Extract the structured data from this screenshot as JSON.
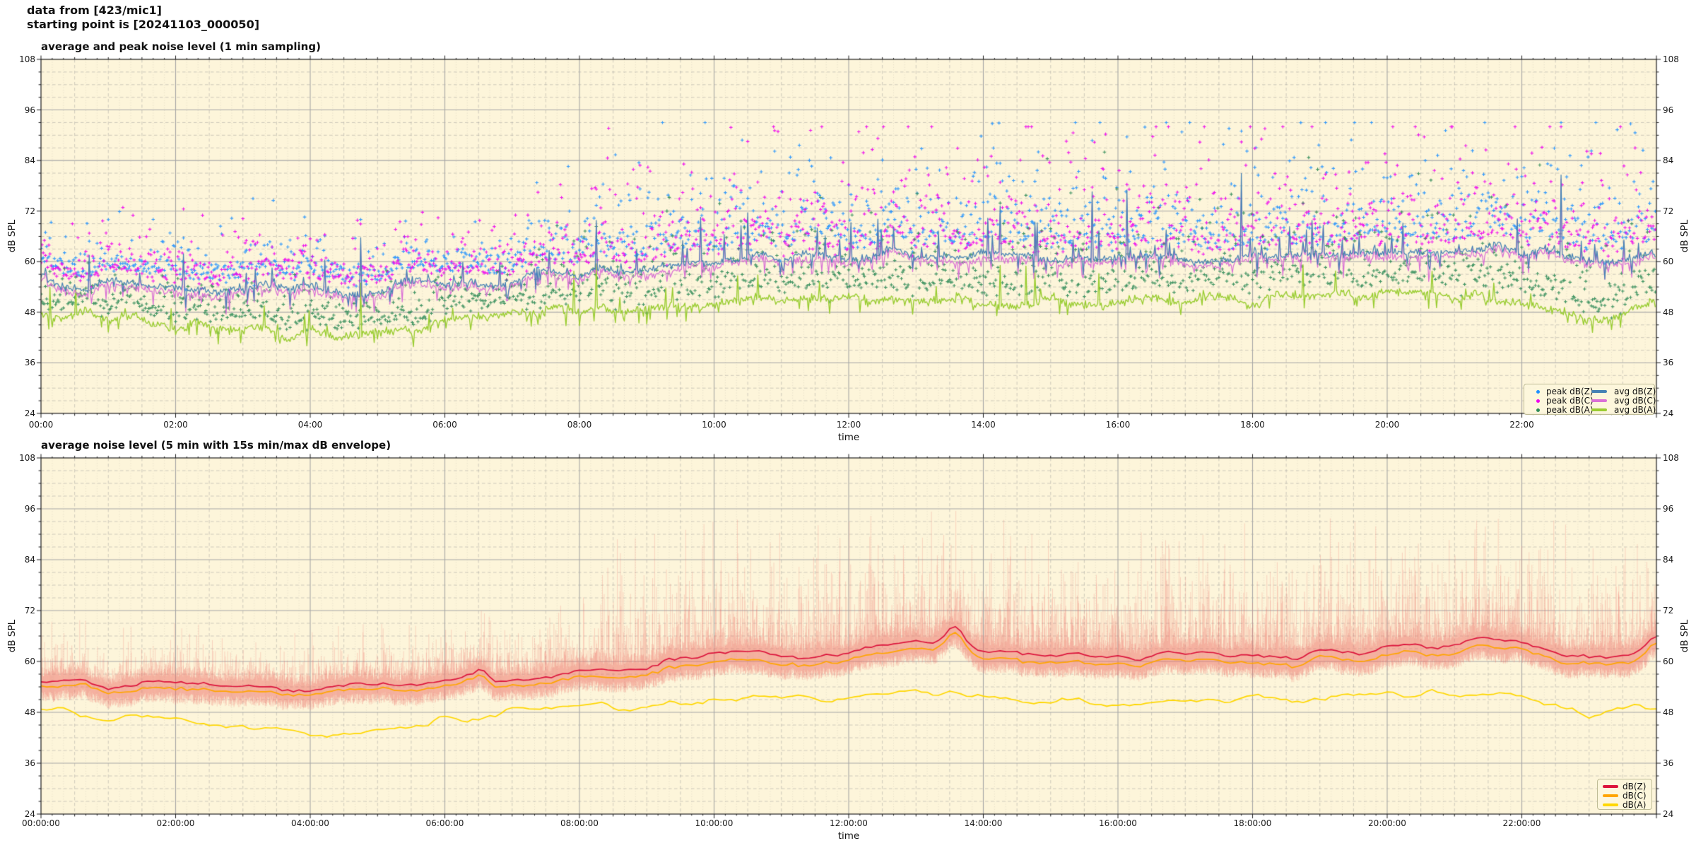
{
  "header": {
    "line1": "data from [423/mic1]",
    "line2": "starting point is [20241103_000050]"
  },
  "chart_data": [
    {
      "type": "line",
      "title": "average and peak noise level (1 min sampling)",
      "xlabel": "time",
      "ylabel_left": "dB SPL",
      "ylabel_right": "dB SPL",
      "ylim": [
        24,
        108
      ],
      "xlim_hours": [
        0,
        24
      ],
      "x_ticks": [
        "00:00",
        "02:00",
        "04:00",
        "06:00",
        "08:00",
        "10:00",
        "12:00",
        "14:00",
        "16:00",
        "18:00",
        "20:00",
        "22:00"
      ],
      "y_ticks": [
        108,
        96,
        84,
        72,
        60,
        48,
        36,
        24
      ],
      "grid": {
        "x_major_hours": 2,
        "x_minor_minutes": [
          10,
          30
        ],
        "y_major_db": 12,
        "y_minor_db": 3
      },
      "legend_position": "lower right",
      "plot_bg": "#FDF5DA",
      "sampling_minutes": 1,
      "anchor_hours": [
        0,
        1,
        2,
        3,
        4,
        5,
        6,
        7,
        8,
        9,
        10,
        11,
        12,
        13,
        14,
        15,
        16,
        17,
        18,
        19,
        20,
        21,
        22,
        23,
        24
      ],
      "series": [
        {
          "name": "peak dB(Z)",
          "kind": "scatter",
          "color": "#1E90FF",
          "derived_from": "avg dB(Z)",
          "offset_base_db": 3.0,
          "exp_scale_night": 3.0,
          "exp_scale_day": 6.4,
          "max_db": 93
        },
        {
          "name": "peak dB(C)",
          "kind": "scatter",
          "color": "#EE00EE",
          "derived_from": "avg dB(C)",
          "offset_base_db": 3.2,
          "exp_scale_night": 3.2,
          "exp_scale_day": 6.8,
          "max_db": 92
        },
        {
          "name": "peak dB(A)",
          "kind": "scatter",
          "color": "#2E8B57",
          "derived_from": "avg dB(A)",
          "offset_base_db": 2.5,
          "exp_scale_night": 2.4,
          "exp_scale_day": 5.0,
          "max_db": 86
        },
        {
          "name": "avg dB(Z)",
          "kind": "line",
          "color": "#4682B4",
          "anchors_db": [
            55.5,
            54.5,
            54,
            53.5,
            53,
            53.5,
            55,
            56,
            57,
            58.5,
            61,
            62,
            61.5,
            62.5,
            61.5,
            60.5,
            60.5,
            61,
            61,
            61.5,
            63,
            63.5,
            63,
            60.5,
            63
          ]
        },
        {
          "name": "avg dB(C)",
          "kind": "line",
          "color": "#DA70D6",
          "derived_from": "avg dB(Z)",
          "offset_db": -1.0
        },
        {
          "name": "avg dB(A)",
          "kind": "line",
          "color": "#9ACD32",
          "anchors_db": [
            48,
            46.5,
            45,
            43.5,
            42.5,
            43,
            45.5,
            47.5,
            48.5,
            49,
            50.5,
            51.5,
            51,
            52,
            51,
            50.5,
            50.5,
            51,
            51,
            51.5,
            52,
            52.5,
            50,
            46,
            49
          ]
        }
      ]
    },
    {
      "type": "line",
      "title": "average noise level (5 min with 15s min/max dB envelope)",
      "xlabel": "time",
      "ylabel_left": "dB SPL",
      "ylabel_right": "dB SPL",
      "ylim": [
        24,
        108
      ],
      "xlim_hours": [
        0,
        24
      ],
      "x_ticks": [
        "00:00:00",
        "02:00:00",
        "04:00:00",
        "06:00:00",
        "08:00:00",
        "10:00:00",
        "12:00:00",
        "14:00:00",
        "16:00:00",
        "18:00:00",
        "20:00:00",
        "22:00:00"
      ],
      "y_ticks": [
        108,
        96,
        84,
        72,
        60,
        48,
        36,
        24
      ],
      "grid": {
        "x_major_hours": 2,
        "x_minor_minutes": [
          10,
          30
        ],
        "y_major_db": 12,
        "y_minor_db": 3
      },
      "legend_position": "lower right",
      "plot_bg": "#FDF5DA",
      "sampling_minutes": 5,
      "anchor_hours": [
        0,
        1,
        2,
        3,
        4,
        5,
        6,
        7,
        8,
        9,
        10,
        11,
        12,
        13,
        14,
        15,
        16,
        17,
        18,
        19,
        20,
        21,
        22,
        23,
        24
      ],
      "envelope": {
        "label": "15s min/max",
        "color": "#EB7670",
        "alpha": 0.3,
        "seconds": 15,
        "max_above_db_night": 14,
        "max_above_db_day": 31,
        "min_below_db": 3
      },
      "series": [
        {
          "name": "dB(Z)",
          "kind": "line",
          "color": "#DC143C",
          "anchors_db": [
            55.5,
            54.5,
            54.5,
            54,
            53.5,
            54,
            55.5,
            56,
            57.5,
            58.5,
            61,
            62,
            62,
            63.5,
            62,
            61,
            61,
            61.5,
            61.5,
            62,
            63,
            64.5,
            64,
            60,
            64.5
          ]
        },
        {
          "name": "dB(C)",
          "kind": "line",
          "color": "#FFA500",
          "derived_from": "dB(Z)",
          "offset_db": -1.5
        },
        {
          "name": "dB(A)",
          "kind": "line",
          "color": "#FFD700",
          "anchors_db": [
            48.5,
            47,
            45.5,
            44,
            43,
            43.5,
            46,
            48,
            49,
            49.5,
            50.5,
            51.5,
            51,
            52.5,
            51.5,
            50.5,
            50.5,
            51,
            51,
            51.5,
            52,
            52.5,
            51,
            47.5,
            49.5
          ]
        }
      ]
    }
  ]
}
